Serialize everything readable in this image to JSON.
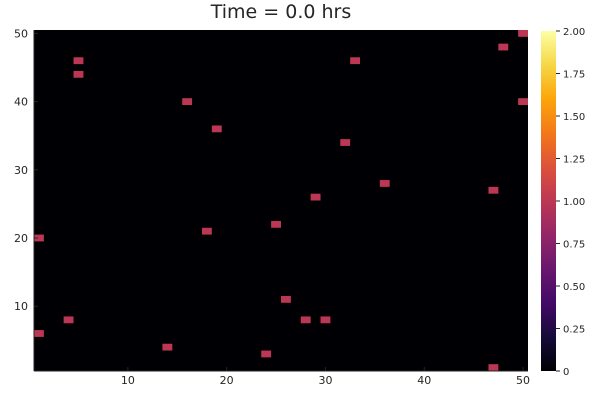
{
  "chart_data": {
    "type": "heatmap",
    "title": "Time = 0.0 hrs",
    "xlabel": "",
    "ylabel": "",
    "xlim": [
      0.5,
      50.5
    ],
    "ylim": [
      0.5,
      50.5
    ],
    "x_ticks": [
      10,
      20,
      30,
      40,
      50
    ],
    "y_ticks": [
      10,
      20,
      30,
      40,
      50
    ],
    "background_value": 0,
    "cells": [
      {
        "x": 50,
        "y": 50,
        "value": 1
      },
      {
        "x": 48,
        "y": 48,
        "value": 1
      },
      {
        "x": 5,
        "y": 46,
        "value": 1
      },
      {
        "x": 33,
        "y": 46,
        "value": 1
      },
      {
        "x": 5,
        "y": 44,
        "value": 1
      },
      {
        "x": 16,
        "y": 40,
        "value": 1
      },
      {
        "x": 50,
        "y": 40,
        "value": 1
      },
      {
        "x": 19,
        "y": 36,
        "value": 1
      },
      {
        "x": 32,
        "y": 34,
        "value": 1
      },
      {
        "x": 36,
        "y": 28,
        "value": 1
      },
      {
        "x": 47,
        "y": 27,
        "value": 1
      },
      {
        "x": 29,
        "y": 26,
        "value": 1
      },
      {
        "x": 25,
        "y": 22,
        "value": 1
      },
      {
        "x": 18,
        "y": 21,
        "value": 1
      },
      {
        "x": 1,
        "y": 20,
        "value": 1
      },
      {
        "x": 26,
        "y": 11,
        "value": 1
      },
      {
        "x": 4,
        "y": 8,
        "value": 1
      },
      {
        "x": 28,
        "y": 8,
        "value": 1
      },
      {
        "x": 30,
        "y": 8,
        "value": 1
      },
      {
        "x": 1,
        "y": 6,
        "value": 1
      },
      {
        "x": 14,
        "y": 4,
        "value": 1
      },
      {
        "x": 24,
        "y": 3,
        "value": 1
      },
      {
        "x": 47,
        "y": 1,
        "value": 1
      }
    ],
    "colorbar": {
      "colormap": "inferno",
      "range": [
        0,
        2
      ],
      "ticks": [
        "0",
        "0.25",
        "0.50",
        "0.75",
        "1.00",
        "1.25",
        "1.50",
        "1.75",
        "2.00"
      ]
    }
  }
}
